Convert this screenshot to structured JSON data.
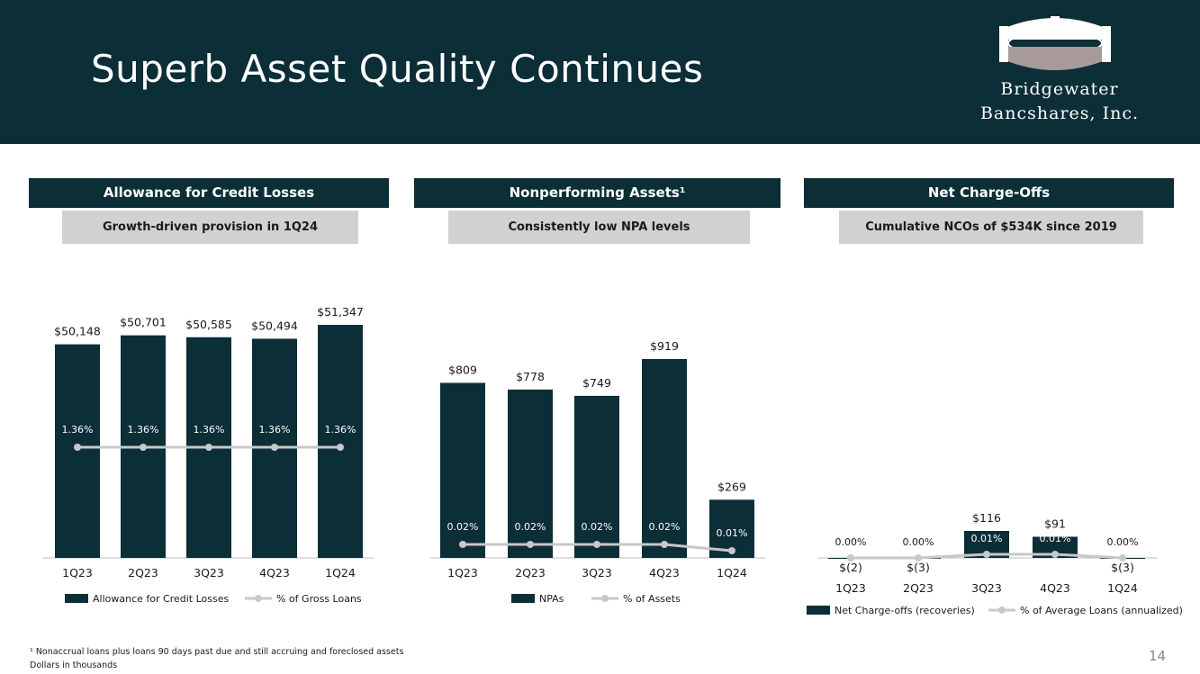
{
  "header": {
    "title": "Superb Asset Quality Continues",
    "logo_line1": "Bridgewater",
    "logo_line2": "Bancshares, Inc."
  },
  "panels": [
    {
      "title": "Allowance for Credit Losses",
      "subtitle": "Growth-driven provision in 1Q24"
    },
    {
      "title": "Nonperforming Assets¹",
      "subtitle": "Consistently low NPA levels"
    },
    {
      "title": "Net Charge-Offs",
      "subtitle": "Cumulative NCOs of $534K since 2019"
    }
  ],
  "footer": {
    "footnote1": "¹ Nonaccrual loans plus loans 90 days past due and still accruing and foreclosed assets",
    "footnote2": "Dollars in thousands",
    "page_number": "14"
  },
  "colors": {
    "navy": "#0b2e37",
    "gray_line": "#c8c8c8",
    "sub_bg": "#d1d1d1"
  },
  "chart_data": [
    {
      "type": "bar",
      "categories": [
        "1Q23",
        "2Q23",
        "3Q23",
        "4Q23",
        "1Q24"
      ],
      "series": [
        {
          "name": "Allowance for Credit Losses",
          "type": "bar",
          "values": [
            50148,
            50701,
            50585,
            50494,
            51347
          ],
          "labels": [
            "$50,148",
            "$50,701",
            "$50,585",
            "$50,494",
            "$51,347"
          ]
        },
        {
          "name": "% of Gross Loans",
          "type": "line",
          "values": [
            1.36,
            1.36,
            1.36,
            1.36,
            1.36
          ],
          "labels": [
            "1.36%",
            "1.36%",
            "1.36%",
            "1.36%",
            "1.36%"
          ]
        }
      ]
    },
    {
      "type": "bar",
      "categories": [
        "1Q23",
        "2Q23",
        "3Q23",
        "4Q23",
        "1Q24"
      ],
      "series": [
        {
          "name": "NPAs",
          "type": "bar",
          "values": [
            809,
            778,
            749,
            919,
            269
          ],
          "labels": [
            "$809",
            "$778",
            "$749",
            "$919",
            "$269"
          ]
        },
        {
          "name": "% of Assets",
          "type": "line",
          "values": [
            0.02,
            0.02,
            0.02,
            0.02,
            0.01
          ],
          "labels": [
            "0.02%",
            "0.02%",
            "0.02%",
            "0.02%",
            "0.01%"
          ]
        }
      ]
    },
    {
      "type": "bar",
      "categories": [
        "1Q23",
        "2Q23",
        "3Q23",
        "4Q23",
        "1Q24"
      ],
      "series": [
        {
          "name": "Net Charge-offs (recoveries)",
          "type": "bar",
          "values": [
            -2,
            -3,
            116,
            91,
            -3
          ],
          "labels": [
            "$(2)",
            "$(3)",
            "$116",
            "$91",
            "$(3)"
          ]
        },
        {
          "name": "% of Average Loans (annualized)",
          "type": "line",
          "values": [
            0.0,
            0.0,
            0.01,
            0.01,
            0.0
          ],
          "labels": [
            "0.00%",
            "0.00%",
            "0.01%",
            "0.01%",
            "0.00%"
          ]
        }
      ]
    }
  ]
}
